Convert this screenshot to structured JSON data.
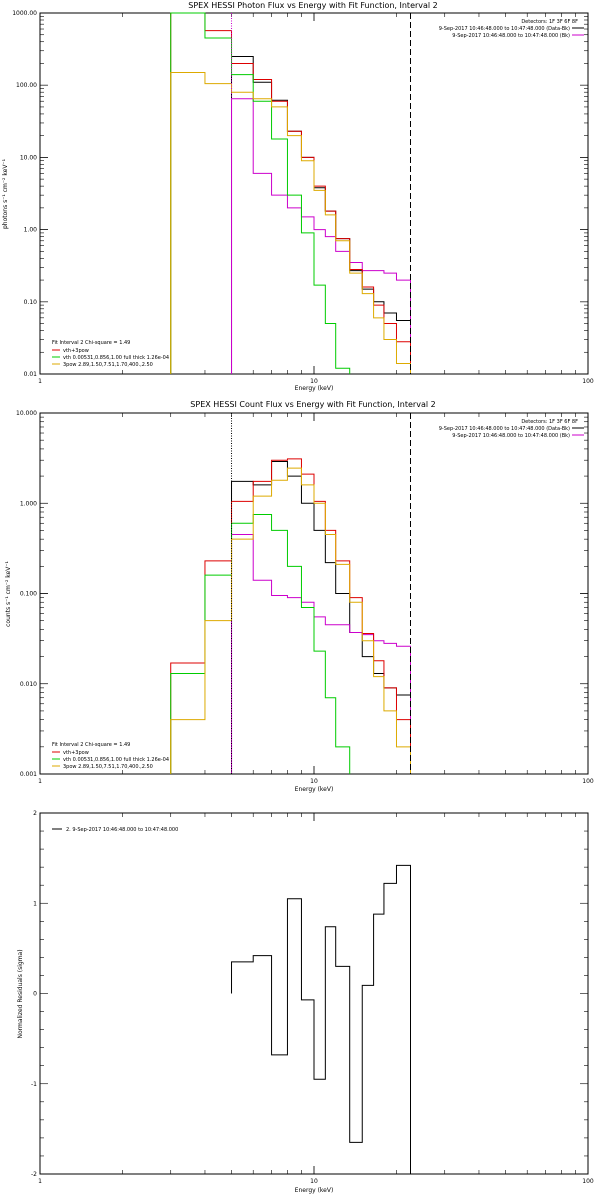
{
  "chart_data": [
    {
      "type": "line",
      "title": "SPEX HESSI Photon Flux vs Energy with Fit Function, Interval 2",
      "xlabel": "Energy (keV)",
      "ylabel": "photons s⁻¹ cm⁻² keV⁻¹",
      "xlog": true,
      "ylog": true,
      "xlim": [
        1,
        100
      ],
      "ylim": [
        0.01,
        1000
      ],
      "xticks": [
        1,
        10,
        100
      ],
      "xtick_labels": [
        "1",
        "10",
        "100"
      ],
      "yticks": [
        0.01,
        0.1,
        1,
        10,
        100,
        1000
      ],
      "ytick_labels": [
        "0.01",
        "0.10",
        "1.00",
        "10.00",
        "100.00",
        "1000.00"
      ],
      "vlines": [
        {
          "x": 5,
          "style": "dotted",
          "color": "#cc00cc"
        },
        {
          "x": 22.5,
          "style": "dashed",
          "color": "#000000"
        }
      ],
      "legend_position": "bottom-left",
      "legend_header": "Fit Interval 2   Chi-square = 1.49",
      "top_right_text": [
        "Detectors: 1F 3F 6F 8F",
        "9-Sep-2017 10:46:48.000 to 10:47:48.000 (Data-Bk)",
        "9-Sep-2017 10:46:48.000 to 10:47:48.000 (Bk)"
      ],
      "series": [
        {
          "name": "Data-Bk",
          "color": "#000000",
          "edges": [
            3,
            4,
            5,
            6,
            7,
            8,
            9,
            10,
            11,
            12,
            13.5,
            15,
            16.5,
            18,
            20,
            22.5
          ],
          "values": [
            null,
            null,
            250,
            110,
            62,
            23,
            10,
            3.8,
            1.8,
            0.75,
            0.27,
            0.15,
            0.1,
            0.07,
            0.055
          ]
        },
        {
          "name": "Bk",
          "color": "#cc00cc",
          "edges": [
            3,
            4,
            5,
            6,
            7,
            8,
            9,
            10,
            11,
            12,
            13.5,
            15,
            16.5,
            18,
            20,
            22.5
          ],
          "values": [
            null,
            null,
            65,
            6,
            3,
            2,
            1.5,
            1.0,
            0.8,
            0.5,
            0.35,
            0.27,
            0.27,
            0.25,
            0.2
          ]
        },
        {
          "name": "vth+3pow",
          "color": "#dd0000",
          "edges": [
            3,
            4,
            5,
            6,
            7,
            8,
            9,
            10,
            11,
            12,
            13.5,
            15,
            16.5,
            18,
            20,
            22.5
          ],
          "values": [
            1000,
            570,
            200,
            120,
            60,
            23,
            10,
            4.0,
            1.8,
            0.75,
            0.28,
            0.16,
            0.09,
            0.05,
            0.028
          ]
        },
        {
          "name": "vth 0.00531,0.856,1.00  full thick 1.26e-04",
          "color": "#00cc00",
          "edges": [
            3,
            4,
            5,
            6,
            7,
            8,
            9,
            10,
            11,
            12,
            13.5,
            15,
            16.5,
            18,
            20,
            22.5
          ],
          "values": [
            1000,
            450,
            140,
            60,
            18,
            3,
            0.9,
            0.17,
            0.05,
            0.012,
            null,
            null,
            null,
            null,
            null
          ]
        },
        {
          "name": "3pow 2.89,1.50,7.51,1.70,400.,2.50",
          "color": "#ddaa00",
          "edges": [
            3,
            4,
            5,
            6,
            7,
            8,
            9,
            10,
            11,
            12,
            13.5,
            15,
            16.5,
            18,
            20,
            22.5
          ],
          "values": [
            150,
            105,
            80,
            65,
            50,
            20,
            9,
            3.5,
            1.6,
            0.7,
            0.25,
            0.13,
            0.06,
            0.03,
            0.014
          ]
        }
      ]
    },
    {
      "type": "line",
      "title": "SPEX HESSI Count Flux vs Energy with Fit Function, Interval 2",
      "xlabel": "Energy (keV)",
      "ylabel": "counts s⁻¹ cm⁻² keV⁻¹",
      "xlog": true,
      "ylog": true,
      "xlim": [
        1,
        100
      ],
      "ylim": [
        0.001,
        10
      ],
      "xticks": [
        1,
        10,
        100
      ],
      "xtick_labels": [
        "1",
        "10",
        "100"
      ],
      "yticks": [
        0.001,
        0.01,
        0.1,
        1,
        10
      ],
      "ytick_labels": [
        "0.001",
        "0.010",
        "0.100",
        "1.000",
        "10.000"
      ],
      "vlines": [
        {
          "x": 5,
          "style": "dotted",
          "color": "#000000"
        },
        {
          "x": 22.5,
          "style": "dashed",
          "color": "#000000"
        }
      ],
      "legend_position": "bottom-left",
      "legend_header": "Fit Interval 2   Chi-square = 1.49",
      "top_right_text": [
        "Detectors: 1F 3F 6F 8F",
        "9-Sep-2017 10:46:48.000 to 10:47:48.000 (Data-Bk)",
        "9-Sep-2017 10:46:48.000 to 10:47:48.000 (Bk)"
      ],
      "series": [
        {
          "name": "Data-Bk",
          "color": "#000000",
          "edges": [
            3,
            4,
            5,
            6,
            7,
            8,
            9,
            10,
            11,
            12,
            13.5,
            15,
            16.5,
            18,
            20,
            22.5
          ],
          "values": [
            null,
            null,
            1.75,
            1.6,
            2.9,
            2.0,
            1.0,
            0.5,
            0.22,
            0.1,
            0.037,
            0.02,
            0.013,
            0.009,
            0.0075
          ]
        },
        {
          "name": "Bk",
          "color": "#cc00cc",
          "edges": [
            3,
            4,
            5,
            6,
            7,
            8,
            9,
            10,
            11,
            12,
            13.5,
            15,
            16.5,
            18,
            20,
            22.5
          ],
          "values": [
            null,
            null,
            0.45,
            0.14,
            0.095,
            0.09,
            0.08,
            0.055,
            0.045,
            0.045,
            0.037,
            0.035,
            0.03,
            0.028,
            0.026
          ]
        },
        {
          "name": "vth+3pow",
          "color": "#dd0000",
          "edges": [
            3,
            4,
            5,
            6,
            7,
            8,
            9,
            10,
            11,
            12,
            13.5,
            15,
            16.5,
            18,
            20,
            22.5
          ],
          "values": [
            0.017,
            0.23,
            1.05,
            1.75,
            3.0,
            3.1,
            2.1,
            1.05,
            0.5,
            0.23,
            0.09,
            0.036,
            0.018,
            0.009,
            0.004
          ]
        },
        {
          "name": "vth 0.00531,0.856,1.00  full thick 1.26e-04",
          "color": "#00cc00",
          "edges": [
            3,
            4,
            5,
            6,
            7,
            8,
            9,
            10,
            11,
            12,
            13.5,
            15,
            16.5,
            18,
            20,
            22.5
          ],
          "values": [
            0.013,
            0.16,
            0.6,
            0.75,
            0.5,
            0.2,
            0.07,
            0.023,
            0.007,
            0.002,
            null,
            null,
            null,
            null,
            null
          ]
        },
        {
          "name": "3pow 2.89,1.50,7.51,1.70,400.,2.50",
          "color": "#ddaa00",
          "edges": [
            3,
            4,
            5,
            6,
            7,
            8,
            9,
            10,
            11,
            12,
            13.5,
            15,
            16.5,
            18,
            20,
            22.5
          ],
          "values": [
            0.004,
            0.05,
            0.4,
            1.2,
            1.8,
            2.45,
            1.6,
            1.0,
            0.45,
            0.21,
            0.08,
            0.03,
            0.012,
            0.005,
            0.002
          ]
        }
      ]
    },
    {
      "type": "line",
      "title": "",
      "xlabel": "Energy (keV)",
      "ylabel": "Normalized Residuals (sigma)",
      "xlog": true,
      "ylog": false,
      "xlim": [
        1,
        100
      ],
      "ylim": [
        -2,
        2
      ],
      "xticks": [
        1,
        10,
        100
      ],
      "xtick_labels": [
        "1",
        "10",
        "100"
      ],
      "yticks": [
        -2,
        -1,
        0,
        1,
        2
      ],
      "ytick_labels": [
        "-2",
        "-1",
        "0",
        "1",
        "2"
      ],
      "legend_position": "top-left",
      "series": [
        {
          "name": "2.  9-Sep-2017 10:46:48.000 to 10:47:48.000",
          "color": "#000000",
          "edges": [
            5,
            6,
            7,
            8,
            9,
            10,
            11,
            12,
            13.5,
            15,
            16.5,
            18,
            20,
            22.5
          ],
          "values": [
            0.35,
            0.42,
            -0.68,
            1.05,
            -0.07,
            -0.95,
            0.74,
            0.3,
            -1.65,
            0.09,
            0.88,
            1.22,
            1.42
          ]
        }
      ]
    }
  ]
}
